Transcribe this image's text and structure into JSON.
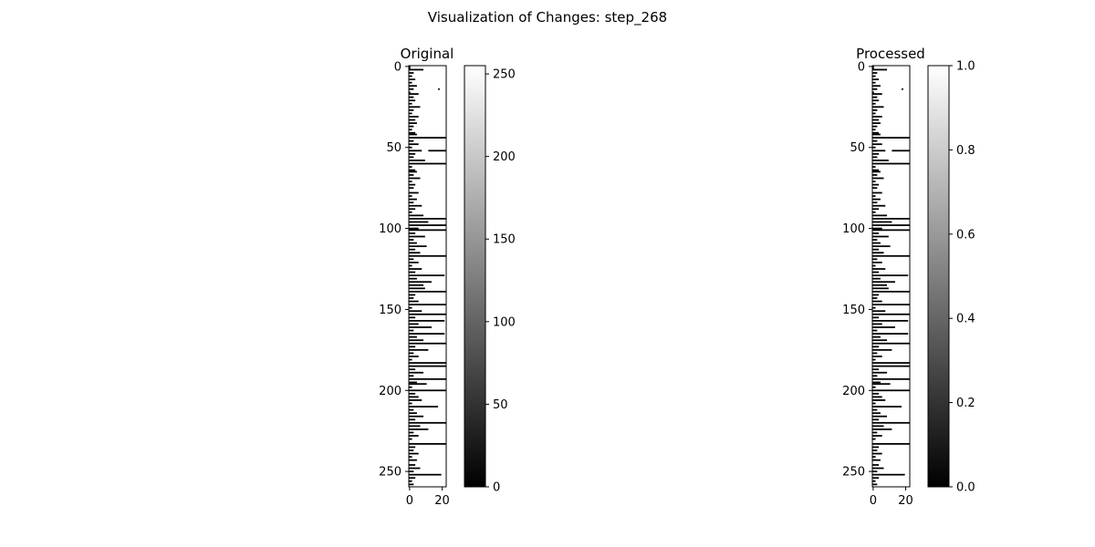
{
  "figure": {
    "suptitle": "Visualization of Changes: step_268"
  },
  "chart_data": [
    {
      "type": "heatmap",
      "title": "Original",
      "image_rows": 260,
      "image_cols": 23,
      "xticks": [
        0,
        20
      ],
      "yticks": [
        0,
        50,
        100,
        150,
        200,
        250
      ],
      "colormap": "gray",
      "colorbar": {
        "range": [
          0,
          255
        ],
        "ticks": [
          0,
          50,
          100,
          150,
          200,
          250
        ]
      },
      "rows": [
        {
          "y": 0,
          "x0": 0,
          "x1": 1
        },
        {
          "y": 1,
          "x0": 0,
          "x1": 1
        },
        {
          "y": 2,
          "x0": 0,
          "x1": 9
        },
        {
          "y": 4,
          "x0": 0,
          "x1": 3
        },
        {
          "y": 6,
          "x0": 0,
          "x1": 2
        },
        {
          "y": 8,
          "x0": 0,
          "x1": 4
        },
        {
          "y": 10,
          "x0": 0,
          "x1": 2
        },
        {
          "y": 12,
          "x0": 0,
          "x1": 5
        },
        {
          "y": 14,
          "x0": 0,
          "x1": 3
        },
        {
          "y": 14,
          "x0": 18,
          "x1": 19
        },
        {
          "y": 16,
          "x0": 0,
          "x1": 1
        },
        {
          "y": 17,
          "x0": 0,
          "x1": 6
        },
        {
          "y": 19,
          "x0": 0,
          "x1": 3
        },
        {
          "y": 21,
          "x0": 0,
          "x1": 4
        },
        {
          "y": 23,
          "x0": 0,
          "x1": 2
        },
        {
          "y": 25,
          "x0": 0,
          "x1": 7
        },
        {
          "y": 27,
          "x0": 0,
          "x1": 3
        },
        {
          "y": 29,
          "x0": 0,
          "x1": 2
        },
        {
          "y": 31,
          "x0": 0,
          "x1": 6
        },
        {
          "y": 33,
          "x0": 0,
          "x1": 4
        },
        {
          "y": 35,
          "x0": 0,
          "x1": 5
        },
        {
          "y": 37,
          "x0": 0,
          "x1": 3
        },
        {
          "y": 39,
          "x0": 0,
          "x1": 2
        },
        {
          "y": 41,
          "x0": 0,
          "x1": 4
        },
        {
          "y": 42,
          "x0": 0,
          "x1": 5
        },
        {
          "y": 44,
          "x0": 0,
          "x1": 23
        },
        {
          "y": 46,
          "x0": 0,
          "x1": 3
        },
        {
          "y": 48,
          "x0": 0,
          "x1": 6
        },
        {
          "y": 50,
          "x0": 0,
          "x1": 2
        },
        {
          "y": 52,
          "x0": 0,
          "x1": 8
        },
        {
          "y": 52,
          "x0": 12,
          "x1": 23
        },
        {
          "y": 54,
          "x0": 0,
          "x1": 4
        },
        {
          "y": 56,
          "x0": 0,
          "x1": 3
        },
        {
          "y": 58,
          "x0": 0,
          "x1": 10
        },
        {
          "y": 60,
          "x0": 0,
          "x1": 23
        },
        {
          "y": 62,
          "x0": 0,
          "x1": 2
        },
        {
          "y": 64,
          "x0": 0,
          "x1": 4
        },
        {
          "y": 65,
          "x0": 0,
          "x1": 5
        },
        {
          "y": 67,
          "x0": 0,
          "x1": 3
        },
        {
          "y": 69,
          "x0": 0,
          "x1": 7
        },
        {
          "y": 71,
          "x0": 0,
          "x1": 2
        },
        {
          "y": 73,
          "x0": 0,
          "x1": 4
        },
        {
          "y": 75,
          "x0": 0,
          "x1": 3
        },
        {
          "y": 78,
          "x0": 0,
          "x1": 6
        },
        {
          "y": 80,
          "x0": 0,
          "x1": 2
        },
        {
          "y": 82,
          "x0": 0,
          "x1": 5
        },
        {
          "y": 84,
          "x0": 0,
          "x1": 3
        },
        {
          "y": 86,
          "x0": 0,
          "x1": 8
        },
        {
          "y": 88,
          "x0": 0,
          "x1": 4
        },
        {
          "y": 90,
          "x0": 0,
          "x1": 2
        },
        {
          "y": 92,
          "x0": 0,
          "x1": 9
        },
        {
          "y": 94,
          "x0": 0,
          "x1": 23
        },
        {
          "y": 96,
          "x0": 0,
          "x1": 12
        },
        {
          "y": 98,
          "x0": 0,
          "x1": 23
        },
        {
          "y": 100,
          "x0": 0,
          "x1": 6
        },
        {
          "y": 101,
          "x0": 0,
          "x1": 23
        },
        {
          "y": 103,
          "x0": 0,
          "x1": 4
        },
        {
          "y": 105,
          "x0": 0,
          "x1": 10
        },
        {
          "y": 107,
          "x0": 0,
          "x1": 3
        },
        {
          "y": 109,
          "x0": 0,
          "x1": 5
        },
        {
          "y": 111,
          "x0": 0,
          "x1": 11
        },
        {
          "y": 113,
          "x0": 0,
          "x1": 4
        },
        {
          "y": 115,
          "x0": 0,
          "x1": 7
        },
        {
          "y": 117,
          "x0": 0,
          "x1": 23
        },
        {
          "y": 119,
          "x0": 0,
          "x1": 3
        },
        {
          "y": 121,
          "x0": 0,
          "x1": 6
        },
        {
          "y": 123,
          "x0": 0,
          "x1": 2
        },
        {
          "y": 125,
          "x0": 0,
          "x1": 8
        },
        {
          "y": 127,
          "x0": 0,
          "x1": 4
        },
        {
          "y": 129,
          "x0": 0,
          "x1": 22
        },
        {
          "y": 131,
          "x0": 0,
          "x1": 5
        },
        {
          "y": 133,
          "x0": 0,
          "x1": 14
        },
        {
          "y": 135,
          "x0": 0,
          "x1": 9
        },
        {
          "y": 137,
          "x0": 0,
          "x1": 10
        },
        {
          "y": 139,
          "x0": 0,
          "x1": 23
        },
        {
          "y": 141,
          "x0": 0,
          "x1": 4
        },
        {
          "y": 143,
          "x0": 0,
          "x1": 3
        },
        {
          "y": 145,
          "x0": 0,
          "x1": 6
        },
        {
          "y": 147,
          "x0": 0,
          "x1": 23
        },
        {
          "y": 149,
          "x0": 0,
          "x1": 2
        },
        {
          "y": 151,
          "x0": 0,
          "x1": 8
        },
        {
          "y": 153,
          "x0": 0,
          "x1": 23
        },
        {
          "y": 155,
          "x0": 0,
          "x1": 4
        },
        {
          "y": 157,
          "x0": 0,
          "x1": 22
        },
        {
          "y": 159,
          "x0": 0,
          "x1": 6
        },
        {
          "y": 161,
          "x0": 0,
          "x1": 14
        },
        {
          "y": 163,
          "x0": 0,
          "x1": 3
        },
        {
          "y": 165,
          "x0": 0,
          "x1": 22
        },
        {
          "y": 167,
          "x0": 0,
          "x1": 5
        },
        {
          "y": 169,
          "x0": 0,
          "x1": 9
        },
        {
          "y": 171,
          "x0": 0,
          "x1": 23
        },
        {
          "y": 173,
          "x0": 0,
          "x1": 4
        },
        {
          "y": 175,
          "x0": 0,
          "x1": 12
        },
        {
          "y": 177,
          "x0": 0,
          "x1": 3
        },
        {
          "y": 179,
          "x0": 0,
          "x1": 6
        },
        {
          "y": 181,
          "x0": 0,
          "x1": 2
        },
        {
          "y": 183,
          "x0": 0,
          "x1": 23
        },
        {
          "y": 185,
          "x0": 0,
          "x1": 23
        },
        {
          "y": 187,
          "x0": 0,
          "x1": 4
        },
        {
          "y": 189,
          "x0": 0,
          "x1": 9
        },
        {
          "y": 191,
          "x0": 0,
          "x1": 3
        },
        {
          "y": 193,
          "x0": 0,
          "x1": 23
        },
        {
          "y": 195,
          "x0": 0,
          "x1": 5
        },
        {
          "y": 196,
          "x0": 0,
          "x1": 11
        },
        {
          "y": 198,
          "x0": 0,
          "x1": 2
        },
        {
          "y": 200,
          "x0": 0,
          "x1": 23
        },
        {
          "y": 202,
          "x0": 0,
          "x1": 4
        },
        {
          "y": 204,
          "x0": 0,
          "x1": 6
        },
        {
          "y": 206,
          "x0": 0,
          "x1": 8
        },
        {
          "y": 208,
          "x0": 0,
          "x1": 2
        },
        {
          "y": 210,
          "x0": 0,
          "x1": 18
        },
        {
          "y": 212,
          "x0": 0,
          "x1": 3
        },
        {
          "y": 214,
          "x0": 0,
          "x1": 5
        },
        {
          "y": 216,
          "x0": 0,
          "x1": 9
        },
        {
          "y": 218,
          "x0": 0,
          "x1": 4
        },
        {
          "y": 220,
          "x0": 0,
          "x1": 23
        },
        {
          "y": 222,
          "x0": 0,
          "x1": 7
        },
        {
          "y": 224,
          "x0": 0,
          "x1": 12
        },
        {
          "y": 226,
          "x0": 0,
          "x1": 3
        },
        {
          "y": 228,
          "x0": 0,
          "x1": 6
        },
        {
          "y": 230,
          "x0": 0,
          "x1": 2
        },
        {
          "y": 233,
          "x0": 0,
          "x1": 23
        },
        {
          "y": 235,
          "x0": 0,
          "x1": 4
        },
        {
          "y": 237,
          "x0": 0,
          "x1": 3
        },
        {
          "y": 239,
          "x0": 0,
          "x1": 6
        },
        {
          "y": 241,
          "x0": 0,
          "x1": 2
        },
        {
          "y": 243,
          "x0": 0,
          "x1": 5
        },
        {
          "y": 246,
          "x0": 0,
          "x1": 4
        },
        {
          "y": 248,
          "x0": 0,
          "x1": 7
        },
        {
          "y": 250,
          "x0": 0,
          "x1": 3
        },
        {
          "y": 252,
          "x0": 0,
          "x1": 20
        },
        {
          "y": 254,
          "x0": 0,
          "x1": 4
        },
        {
          "y": 256,
          "x0": 0,
          "x1": 2
        },
        {
          "y": 258,
          "x0": 0,
          "x1": 3
        }
      ]
    },
    {
      "type": "heatmap",
      "title": "Processed",
      "image_rows": 260,
      "image_cols": 23,
      "xticks": [
        0,
        20
      ],
      "yticks": [
        0,
        50,
        100,
        150,
        200,
        250
      ],
      "colormap": "gray",
      "colorbar": {
        "range": [
          0.0,
          1.0
        ],
        "ticks": [
          "0.0",
          "0.2",
          "0.4",
          "0.6",
          "0.8",
          "1.0"
        ]
      },
      "rows": "same_as_original"
    }
  ]
}
